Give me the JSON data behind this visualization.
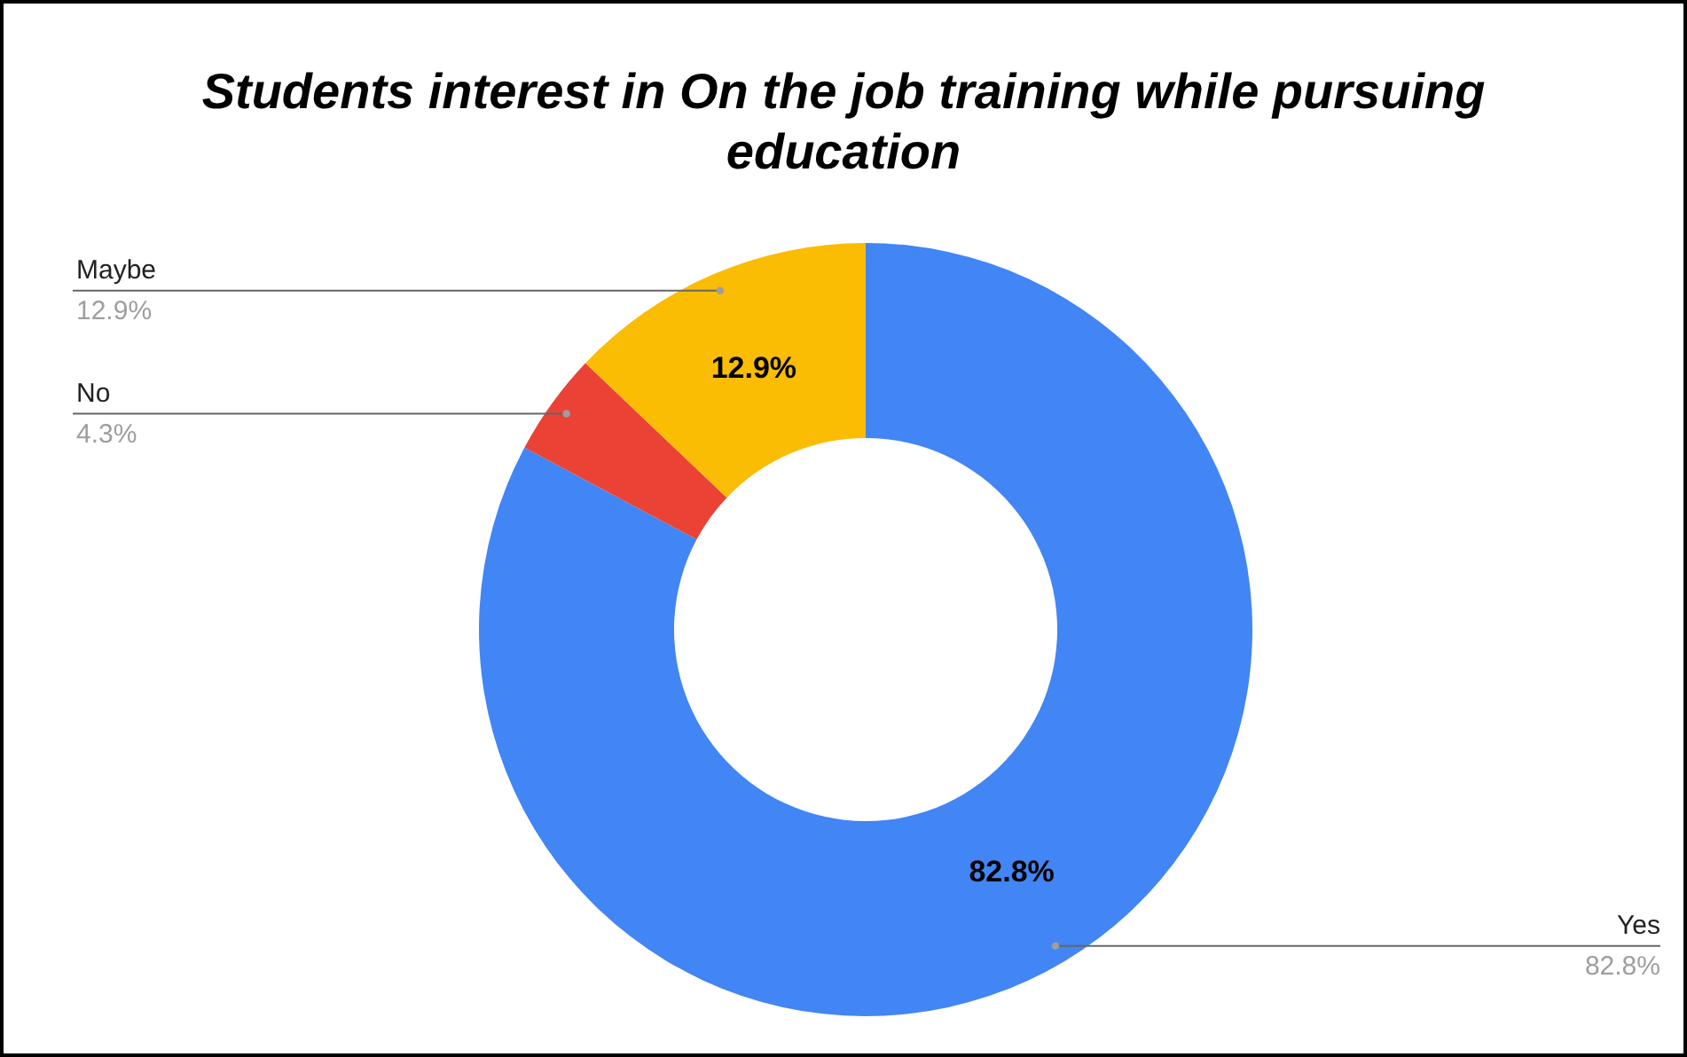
{
  "chart_data": {
    "type": "donut",
    "title": "Students interest in On the job training while pursuing education",
    "categories": [
      "Yes",
      "No",
      "Maybe"
    ],
    "values": [
      82.8,
      4.3,
      12.9
    ],
    "colors": [
      "#4285f4",
      "#ea4335",
      "#fbbc04"
    ],
    "value_labels": [
      "82.8%",
      "4.3%",
      "12.9%"
    ],
    "data_labels": true
  }
}
